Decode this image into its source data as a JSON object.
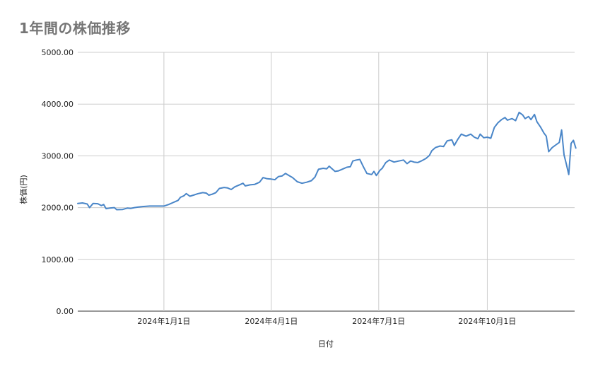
{
  "chart_data": {
    "type": "line",
    "title": "1年間の株価推移",
    "xlabel": "日付",
    "ylabel": "株価(円)",
    "ylim": [
      0,
      5000
    ],
    "yticks": [
      "0.00",
      "1000.00",
      "2000.00",
      "3000.00",
      "4000.00",
      "5000.00"
    ],
    "xticks": [
      "2024年1月1日",
      "2024年4月1日",
      "2024年7月1日",
      "2024年10月1日"
    ],
    "xlim": [
      "2023-10-20",
      "2024-12-14"
    ],
    "xtick_dates": [
      "2024-01-01",
      "2024-04-01",
      "2024-07-01",
      "2024-10-01"
    ],
    "grid": true,
    "series": [
      {
        "color": "#4a86c8",
        "points": [
          [
            "2023-10-20",
            2080
          ],
          [
            "2023-10-24",
            2090
          ],
          [
            "2023-10-28",
            2070
          ],
          [
            "2023-10-30",
            2000
          ],
          [
            "2023-11-02",
            2080
          ],
          [
            "2023-11-06",
            2075
          ],
          [
            "2023-11-09",
            2040
          ],
          [
            "2023-11-11",
            2060
          ],
          [
            "2023-11-13",
            1980
          ],
          [
            "2023-11-16",
            1990
          ],
          [
            "2023-11-20",
            2000
          ],
          [
            "2023-11-22",
            1960
          ],
          [
            "2023-11-27",
            1965
          ],
          [
            "2023-12-01",
            1990
          ],
          [
            "2023-12-04",
            1985
          ],
          [
            "2023-12-07",
            2000
          ],
          [
            "2023-12-10",
            2010
          ],
          [
            "2023-12-14",
            2020
          ],
          [
            "2023-12-20",
            2030
          ],
          [
            "2023-12-26",
            2030
          ],
          [
            "2024-01-01",
            2030
          ],
          [
            "2024-01-05",
            2060
          ],
          [
            "2024-01-08",
            2090
          ],
          [
            "2024-01-11",
            2120
          ],
          [
            "2024-01-13",
            2140
          ],
          [
            "2024-01-15",
            2200
          ],
          [
            "2024-01-18",
            2230
          ],
          [
            "2024-01-20",
            2270
          ],
          [
            "2024-01-23",
            2220
          ],
          [
            "2024-01-26",
            2240
          ],
          [
            "2024-01-30",
            2270
          ],
          [
            "2024-02-03",
            2290
          ],
          [
            "2024-02-06",
            2280
          ],
          [
            "2024-02-08",
            2240
          ],
          [
            "2024-02-11",
            2260
          ],
          [
            "2024-02-14",
            2290
          ],
          [
            "2024-02-17",
            2370
          ],
          [
            "2024-02-21",
            2390
          ],
          [
            "2024-02-24",
            2380
          ],
          [
            "2024-02-27",
            2350
          ],
          [
            "2024-03-01",
            2400
          ],
          [
            "2024-03-05",
            2440
          ],
          [
            "2024-03-08",
            2470
          ],
          [
            "2024-03-10",
            2420
          ],
          [
            "2024-03-14",
            2440
          ],
          [
            "2024-03-18",
            2450
          ],
          [
            "2024-03-22",
            2490
          ],
          [
            "2024-03-25",
            2580
          ],
          [
            "2024-03-28",
            2560
          ],
          [
            "2024-04-01",
            2550
          ],
          [
            "2024-04-04",
            2540
          ],
          [
            "2024-04-07",
            2600
          ],
          [
            "2024-04-10",
            2610
          ],
          [
            "2024-04-13",
            2660
          ],
          [
            "2024-04-16",
            2620
          ],
          [
            "2024-04-19",
            2580
          ],
          [
            "2024-04-23",
            2500
          ],
          [
            "2024-04-27",
            2470
          ],
          [
            "2024-05-01",
            2490
          ],
          [
            "2024-05-05",
            2520
          ],
          [
            "2024-05-08",
            2590
          ],
          [
            "2024-05-11",
            2740
          ],
          [
            "2024-05-15",
            2760
          ],
          [
            "2024-05-18",
            2750
          ],
          [
            "2024-05-20",
            2800
          ],
          [
            "2024-05-22",
            2760
          ],
          [
            "2024-05-25",
            2700
          ],
          [
            "2024-05-28",
            2710
          ],
          [
            "2024-06-01",
            2750
          ],
          [
            "2024-06-04",
            2780
          ],
          [
            "2024-06-07",
            2790
          ],
          [
            "2024-06-09",
            2900
          ],
          [
            "2024-06-12",
            2920
          ],
          [
            "2024-06-15",
            2930
          ],
          [
            "2024-06-18",
            2790
          ],
          [
            "2024-06-21",
            2660
          ],
          [
            "2024-06-25",
            2640
          ],
          [
            "2024-06-27",
            2700
          ],
          [
            "2024-06-29",
            2620
          ],
          [
            "2024-07-02",
            2720
          ],
          [
            "2024-07-04",
            2760
          ],
          [
            "2024-07-07",
            2870
          ],
          [
            "2024-07-10",
            2920
          ],
          [
            "2024-07-14",
            2880
          ],
          [
            "2024-07-18",
            2900
          ],
          [
            "2024-07-22",
            2920
          ],
          [
            "2024-07-25",
            2850
          ],
          [
            "2024-07-28",
            2900
          ],
          [
            "2024-07-31",
            2880
          ],
          [
            "2024-08-03",
            2870
          ],
          [
            "2024-08-06",
            2900
          ],
          [
            "2024-08-10",
            2950
          ],
          [
            "2024-08-13",
            3010
          ],
          [
            "2024-08-15",
            3100
          ],
          [
            "2024-08-18",
            3160
          ],
          [
            "2024-08-22",
            3190
          ],
          [
            "2024-08-25",
            3180
          ],
          [
            "2024-08-28",
            3290
          ],
          [
            "2024-09-01",
            3310
          ],
          [
            "2024-09-03",
            3200
          ],
          [
            "2024-09-06",
            3320
          ],
          [
            "2024-09-09",
            3420
          ],
          [
            "2024-09-13",
            3380
          ],
          [
            "2024-09-17",
            3420
          ],
          [
            "2024-09-20",
            3360
          ],
          [
            "2024-09-23",
            3330
          ],
          [
            "2024-09-25",
            3420
          ],
          [
            "2024-09-28",
            3350
          ],
          [
            "2024-10-01",
            3360
          ],
          [
            "2024-10-04",
            3340
          ],
          [
            "2024-10-07",
            3550
          ],
          [
            "2024-10-10",
            3640
          ],
          [
            "2024-10-13",
            3700
          ],
          [
            "2024-10-16",
            3740
          ],
          [
            "2024-10-18",
            3690
          ],
          [
            "2024-10-22",
            3720
          ],
          [
            "2024-10-25",
            3680
          ],
          [
            "2024-10-28",
            3840
          ],
          [
            "2024-10-31",
            3790
          ],
          [
            "2024-11-02",
            3720
          ],
          [
            "2024-11-05",
            3760
          ],
          [
            "2024-11-07",
            3700
          ],
          [
            "2024-11-10",
            3800
          ],
          [
            "2024-11-12",
            3660
          ],
          [
            "2024-11-15",
            3560
          ],
          [
            "2024-11-18",
            3440
          ],
          [
            "2024-11-20",
            3380
          ],
          [
            "2024-11-22",
            3080
          ],
          [
            "2024-11-25",
            3160
          ],
          [
            "2024-11-28",
            3210
          ],
          [
            "2024-12-01",
            3260
          ],
          [
            "2024-12-03",
            3500
          ],
          [
            "2024-12-05",
            3020
          ],
          [
            "2024-12-07",
            2840
          ],
          [
            "2024-12-09",
            2640
          ],
          [
            "2024-12-11",
            3240
          ],
          [
            "2024-12-13",
            3300
          ],
          [
            "2024-12-15",
            3150
          ]
        ]
      }
    ]
  }
}
